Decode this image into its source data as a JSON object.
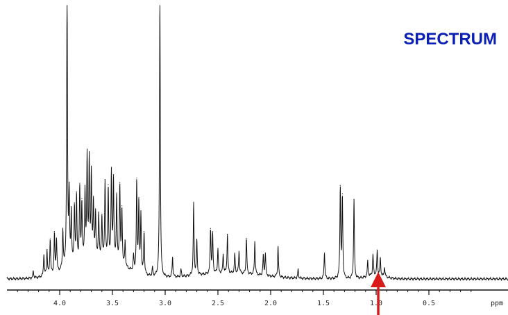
{
  "chart_data": {
    "type": "line",
    "annotation_text": "SPECTRUM",
    "x_unit": "ppm",
    "xlim": [
      4.5,
      -0.25
    ],
    "x_reversed": true,
    "grid": false,
    "legend": "none",
    "tick_labels": [
      "4.0",
      "3.5",
      "3.0",
      "2.5",
      "2.0",
      "1.5",
      "1.0",
      "0.5",
      "ppm"
    ],
    "ticks": [
      4.0,
      3.5,
      3.0,
      2.5,
      2.0,
      1.5,
      1.0,
      0.5
    ],
    "baseline": 0.015,
    "peaks": [
      {
        "x": 4.25,
        "y": 0.025
      },
      {
        "x": 4.15,
        "y": 0.08
      },
      {
        "x": 4.12,
        "y": 0.09
      },
      {
        "x": 4.09,
        "y": 0.13
      },
      {
        "x": 4.05,
        "y": 0.14
      },
      {
        "x": 4.03,
        "y": 0.12
      },
      {
        "x": 3.97,
        "y": 0.14
      },
      {
        "x": 3.93,
        "y": 1.0
      },
      {
        "x": 3.91,
        "y": 0.25
      },
      {
        "x": 3.89,
        "y": 0.18
      },
      {
        "x": 3.86,
        "y": 0.2
      },
      {
        "x": 3.84,
        "y": 0.23
      },
      {
        "x": 3.81,
        "y": 0.26
      },
      {
        "x": 3.79,
        "y": 0.2
      },
      {
        "x": 3.76,
        "y": 0.24
      },
      {
        "x": 3.74,
        "y": 0.36
      },
      {
        "x": 3.72,
        "y": 0.34
      },
      {
        "x": 3.7,
        "y": 0.3
      },
      {
        "x": 3.68,
        "y": 0.19
      },
      {
        "x": 3.66,
        "y": 0.15
      },
      {
        "x": 3.63,
        "y": 0.15
      },
      {
        "x": 3.6,
        "y": 0.14
      },
      {
        "x": 3.57,
        "y": 0.27
      },
      {
        "x": 3.54,
        "y": 0.25
      },
      {
        "x": 3.51,
        "y": 0.31
      },
      {
        "x": 3.49,
        "y": 0.29
      },
      {
        "x": 3.46,
        "y": 0.24
      },
      {
        "x": 3.43,
        "y": 0.28
      },
      {
        "x": 3.41,
        "y": 0.2
      },
      {
        "x": 3.38,
        "y": 0.09
      },
      {
        "x": 3.3,
        "y": 0.055
      },
      {
        "x": 3.27,
        "y": 0.32
      },
      {
        "x": 3.25,
        "y": 0.25
      },
      {
        "x": 3.23,
        "y": 0.21
      },
      {
        "x": 3.2,
        "y": 0.15
      },
      {
        "x": 3.12,
        "y": 0.03
      },
      {
        "x": 3.05,
        "y": 1.0
      },
      {
        "x": 2.93,
        "y": 0.07
      },
      {
        "x": 2.85,
        "y": 0.025
      },
      {
        "x": 2.73,
        "y": 0.26
      },
      {
        "x": 2.7,
        "y": 0.12
      },
      {
        "x": 2.57,
        "y": 0.16
      },
      {
        "x": 2.55,
        "y": 0.14
      },
      {
        "x": 2.5,
        "y": 0.09
      },
      {
        "x": 2.45,
        "y": 0.07
      },
      {
        "x": 2.41,
        "y": 0.14
      },
      {
        "x": 2.34,
        "y": 0.07
      },
      {
        "x": 2.3,
        "y": 0.08
      },
      {
        "x": 2.23,
        "y": 0.13
      },
      {
        "x": 2.15,
        "y": 0.12
      },
      {
        "x": 2.07,
        "y": 0.07
      },
      {
        "x": 2.05,
        "y": 0.08
      },
      {
        "x": 1.93,
        "y": 0.11
      },
      {
        "x": 1.74,
        "y": 0.03
      },
      {
        "x": 1.49,
        "y": 0.097
      },
      {
        "x": 1.34,
        "y": 0.325
      },
      {
        "x": 1.32,
        "y": 0.29
      },
      {
        "x": 1.21,
        "y": 0.286
      },
      {
        "x": 1.08,
        "y": 0.055
      },
      {
        "x": 1.03,
        "y": 0.075
      },
      {
        "x": 0.99,
        "y": 0.09
      },
      {
        "x": 0.96,
        "y": 0.06
      },
      {
        "x": 0.92,
        "y": 0.035
      }
    ],
    "arrow_at_ppm": 0.98,
    "colors": {
      "trace": "#111111",
      "annotation": "#0a1fb5",
      "arrow": "#d91a1a"
    }
  }
}
